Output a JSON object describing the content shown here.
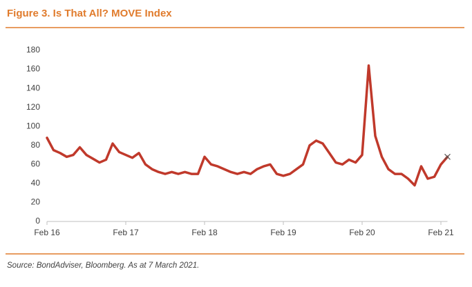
{
  "chart_data": {
    "type": "line",
    "title": "Figure 3. Is That All? MOVE Index",
    "source": "Source: BondAdviser, Bloomberg. As at 7 March 2021.",
    "x": [
      "2016-02",
      "2016-03",
      "2016-04",
      "2016-05",
      "2016-06",
      "2016-07",
      "2016-08",
      "2016-09",
      "2016-10",
      "2016-11",
      "2016-12",
      "2017-01",
      "2017-02",
      "2017-03",
      "2017-04",
      "2017-05",
      "2017-06",
      "2017-07",
      "2017-08",
      "2017-09",
      "2017-10",
      "2017-11",
      "2017-12",
      "2018-01",
      "2018-02",
      "2018-03",
      "2018-04",
      "2018-05",
      "2018-06",
      "2018-07",
      "2018-08",
      "2018-09",
      "2018-10",
      "2018-11",
      "2018-12",
      "2019-01",
      "2019-02",
      "2019-03",
      "2019-04",
      "2019-05",
      "2019-06",
      "2019-07",
      "2019-08",
      "2019-09",
      "2019-10",
      "2019-11",
      "2019-12",
      "2020-01",
      "2020-02",
      "2020-03",
      "2020-04",
      "2020-05",
      "2020-06",
      "2020-07",
      "2020-08",
      "2020-09",
      "2020-10",
      "2020-11",
      "2020-12",
      "2021-01",
      "2021-02",
      "2021-03"
    ],
    "series": [
      {
        "name": "MOVE Index",
        "color": "#c0392b",
        "values": [
          88,
          75,
          72,
          68,
          70,
          78,
          70,
          66,
          62,
          65,
          82,
          73,
          70,
          67,
          72,
          60,
          55,
          52,
          50,
          52,
          50,
          52,
          50,
          50,
          68,
          60,
          58,
          55,
          52,
          50,
          52,
          50,
          55,
          58,
          60,
          50,
          48,
          50,
          55,
          60,
          80,
          85,
          82,
          72,
          62,
          60,
          65,
          62,
          70,
          164,
          90,
          68,
          55,
          50,
          50,
          45,
          38,
          58,
          45,
          47,
          60,
          68
        ]
      }
    ],
    "xlim": [
      "2016-02",
      "2021-03"
    ],
    "xticks": [
      {
        "value": "2016-02",
        "label": "Feb 16"
      },
      {
        "value": "2017-02",
        "label": "Feb 17"
      },
      {
        "value": "2018-02",
        "label": "Feb 18"
      },
      {
        "value": "2019-02",
        "label": "Feb 19"
      },
      {
        "value": "2020-02",
        "label": "Feb 20"
      },
      {
        "value": "2021-02",
        "label": "Feb 21"
      }
    ],
    "ylim": [
      0,
      180
    ],
    "yticks": [
      0,
      20,
      40,
      60,
      80,
      100,
      120,
      140,
      160,
      180
    ],
    "grid": false
  }
}
